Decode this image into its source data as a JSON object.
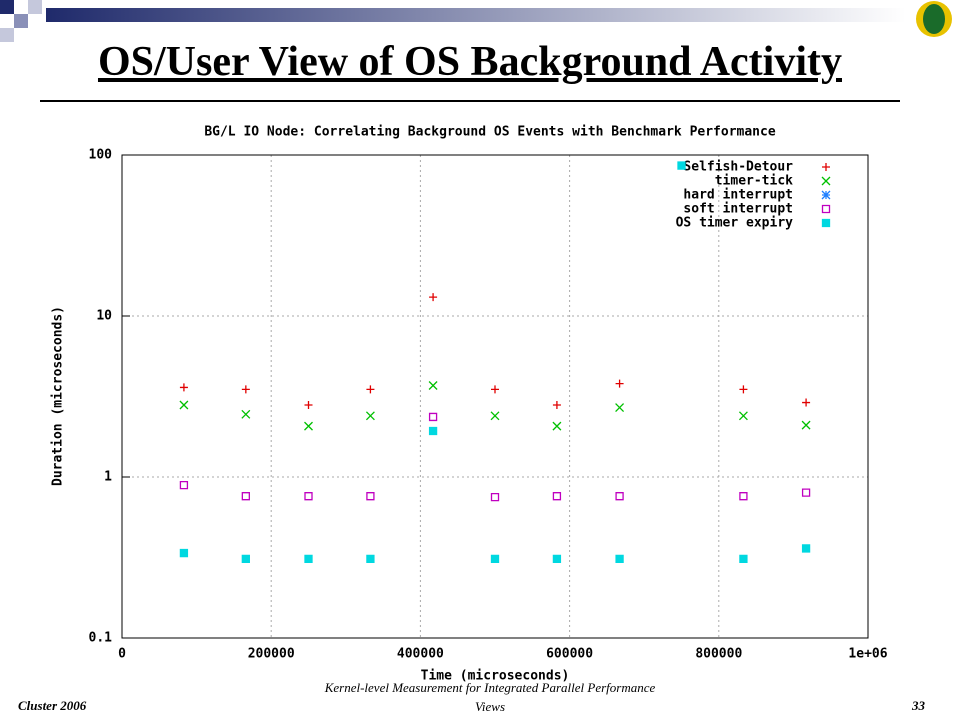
{
  "slide": {
    "title": "OS/User View of OS Background Activity",
    "footer_left": "Cluster 2006",
    "footer_center": "Kernel-level Measurement for Integrated Parallel Performance Views",
    "page_number": "33"
  },
  "chart_data": {
    "type": "scatter",
    "title": "BG/L IO Node: Correlating Background OS Events with Benchmark Performance",
    "x_label": "Time (microseconds)",
    "y_label": "Duration (microseconds)",
    "x": [
      83000,
      166000,
      250000,
      333000,
      417000,
      500000,
      583000,
      667000,
      750000,
      833000,
      917000
    ],
    "series": [
      {
        "name": "Selfish-Detour",
        "color": "#e00000",
        "marker": "plus",
        "values": [
          3.6,
          3.5,
          2.8,
          3.5,
          13.1,
          3.5,
          2.8,
          3.8,
          null,
          3.5,
          2.9
        ]
      },
      {
        "name": "timer-tick",
        "color": "#00c000",
        "marker": "cross",
        "values": [
          2.8,
          2.45,
          2.07,
          2.4,
          3.7,
          2.4,
          2.07,
          2.7,
          null,
          2.4,
          2.1
        ]
      },
      {
        "name": "hard interrupt",
        "color": "#1e7fff",
        "marker": "star",
        "values": [
          null,
          null,
          null,
          null,
          null,
          null,
          null,
          null,
          null,
          null,
          null
        ]
      },
      {
        "name": "soft interrupt",
        "color": "#c000c0",
        "marker": "open-square",
        "values": [
          0.89,
          0.76,
          0.76,
          0.76,
          2.36,
          0.75,
          0.76,
          0.76,
          null,
          0.76,
          0.8
        ]
      },
      {
        "name": "OS timer expiry",
        "color": "#00d8e0",
        "marker": "filled-square",
        "values": [
          0.337,
          0.31,
          0.31,
          0.31,
          1.93,
          0.31,
          0.31,
          0.31,
          86,
          0.31,
          0.36
        ]
      }
    ],
    "xlim": [
      0,
      1000000
    ],
    "xticks": [
      0,
      200000,
      400000,
      600000,
      800000,
      {
        "value": 1000000,
        "label": "1e+06"
      }
    ],
    "ylim": [
      0.1,
      100
    ],
    "yticks": [
      0.1,
      1,
      10,
      100
    ],
    "log_y": true,
    "grid": true,
    "legend": "top-right"
  }
}
